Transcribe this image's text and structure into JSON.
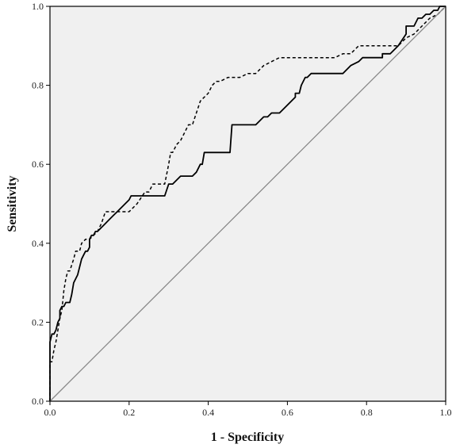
{
  "chart_data": {
    "type": "line",
    "title": "",
    "xlabel": "1 - Specificity",
    "ylabel": "Sensitivity",
    "xlim": [
      0,
      1
    ],
    "ylim": [
      0,
      1
    ],
    "xticks": [
      "0.0",
      "0.2",
      "0.4",
      "0.6",
      "0.8",
      "1.0"
    ],
    "yticks": [
      "0.0",
      "0.2",
      "0.4",
      "0.6",
      "0.8",
      "1.0"
    ],
    "grid": false,
    "background": "#f0f0f0",
    "series": [
      {
        "style": "solid",
        "color": "#000000",
        "x": [
          0,
          0,
          0.005,
          0.01,
          0.015,
          0.02,
          0.025,
          0.025,
          0.03,
          0.035,
          0.04,
          0.045,
          0.05,
          0.055,
          0.06,
          0.065,
          0.07,
          0.075,
          0.08,
          0.085,
          0.09,
          0.095,
          0.1,
          0.1,
          0.105,
          0.11,
          0.115,
          0.12,
          0.13,
          0.14,
          0.15,
          0.16,
          0.17,
          0.18,
          0.19,
          0.2,
          0.205,
          0.22,
          0.24,
          0.25,
          0.26,
          0.28,
          0.29,
          0.3,
          0.31,
          0.32,
          0.33,
          0.34,
          0.36,
          0.37,
          0.38,
          0.385,
          0.39,
          0.4,
          0.43,
          0.455,
          0.46,
          0.52,
          0.54,
          0.55,
          0.56,
          0.58,
          0.59,
          0.59,
          0.6,
          0.6,
          0.61,
          0.62,
          0.62,
          0.63,
          0.635,
          0.64,
          0.645,
          0.65,
          0.66,
          0.67,
          0.68,
          0.7,
          0.74,
          0.76,
          0.78,
          0.79,
          0.8,
          0.82,
          0.84,
          0.84,
          0.86,
          0.87,
          0.87,
          0.88,
          0.9,
          0.9,
          0.92,
          0.93,
          0.94,
          0.95,
          0.96,
          0.97,
          0.98,
          0.985,
          1.0
        ],
        "y": [
          0,
          0.15,
          0.17,
          0.17,
          0.18,
          0.2,
          0.21,
          0.23,
          0.24,
          0.24,
          0.25,
          0.25,
          0.25,
          0.27,
          0.3,
          0.31,
          0.32,
          0.34,
          0.36,
          0.37,
          0.38,
          0.38,
          0.39,
          0.41,
          0.42,
          0.42,
          0.43,
          0.43,
          0.44,
          0.45,
          0.46,
          0.47,
          0.48,
          0.49,
          0.5,
          0.51,
          0.52,
          0.52,
          0.52,
          0.52,
          0.52,
          0.52,
          0.52,
          0.55,
          0.55,
          0.56,
          0.57,
          0.57,
          0.57,
          0.58,
          0.6,
          0.6,
          0.63,
          0.63,
          0.63,
          0.63,
          0.7,
          0.7,
          0.72,
          0.72,
          0.73,
          0.73,
          0.74,
          0.74,
          0.75,
          0.75,
          0.76,
          0.77,
          0.78,
          0.78,
          0.8,
          0.81,
          0.82,
          0.82,
          0.83,
          0.83,
          0.83,
          0.83,
          0.83,
          0.85,
          0.86,
          0.87,
          0.87,
          0.87,
          0.87,
          0.88,
          0.88,
          0.89,
          0.89,
          0.9,
          0.93,
          0.95,
          0.95,
          0.97,
          0.97,
          0.98,
          0.98,
          0.99,
          0.99,
          1.0,
          1.0
        ]
      },
      {
        "style": "dashed",
        "color": "#000000",
        "x": [
          0,
          0,
          0.005,
          0.01,
          0.015,
          0.02,
          0.025,
          0.03,
          0.035,
          0.04,
          0.045,
          0.05,
          0.06,
          0.065,
          0.075,
          0.08,
          0.09,
          0.1,
          0.11,
          0.12,
          0.13,
          0.14,
          0.16,
          0.17,
          0.2,
          0.22,
          0.24,
          0.25,
          0.26,
          0.28,
          0.29,
          0.3,
          0.305,
          0.31,
          0.32,
          0.33,
          0.34,
          0.35,
          0.36,
          0.37,
          0.38,
          0.39,
          0.4,
          0.41,
          0.42,
          0.43,
          0.45,
          0.47,
          0.48,
          0.5,
          0.52,
          0.54,
          0.56,
          0.58,
          0.6,
          0.62,
          0.64,
          0.66,
          0.68,
          0.7,
          0.72,
          0.74,
          0.76,
          0.78,
          0.8,
          0.82,
          0.84,
          0.86,
          0.88,
          0.9,
          0.92,
          0.94,
          0.96,
          0.98,
          0.99,
          1.0
        ],
        "y": [
          0,
          0.1,
          0.1,
          0.13,
          0.15,
          0.18,
          0.21,
          0.23,
          0.28,
          0.31,
          0.33,
          0.33,
          0.36,
          0.38,
          0.38,
          0.4,
          0.41,
          0.41,
          0.42,
          0.43,
          0.45,
          0.48,
          0.48,
          0.48,
          0.48,
          0.5,
          0.53,
          0.53,
          0.55,
          0.55,
          0.55,
          0.6,
          0.63,
          0.63,
          0.65,
          0.66,
          0.68,
          0.7,
          0.7,
          0.73,
          0.76,
          0.77,
          0.78,
          0.8,
          0.81,
          0.81,
          0.82,
          0.82,
          0.82,
          0.83,
          0.83,
          0.85,
          0.86,
          0.87,
          0.87,
          0.87,
          0.87,
          0.87,
          0.87,
          0.87,
          0.87,
          0.88,
          0.88,
          0.9,
          0.9,
          0.9,
          0.9,
          0.9,
          0.9,
          0.92,
          0.93,
          0.95,
          0.97,
          0.98,
          0.99,
          1.0
        ]
      },
      {
        "style": "reference",
        "color": "#888888",
        "x": [
          0,
          1
        ],
        "y": [
          0,
          1
        ]
      }
    ]
  }
}
